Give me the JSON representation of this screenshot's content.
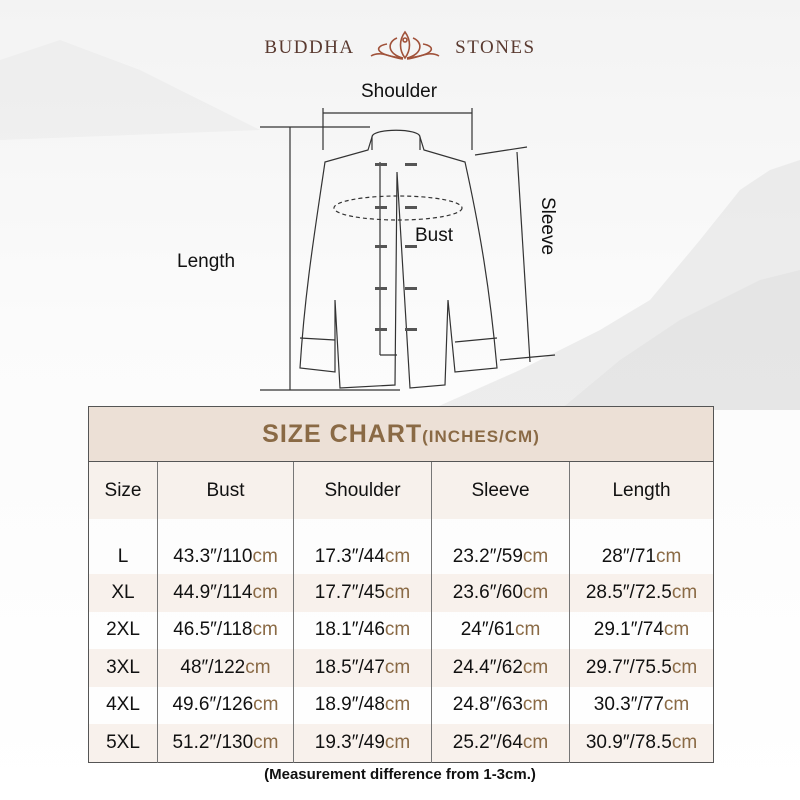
{
  "brand": {
    "left": "BUDDHA",
    "right": "STONES",
    "logo_icon": "lotus-meditation-icon",
    "color": "#a0523a"
  },
  "diagram": {
    "shoulder": "Shoulder",
    "bust": "Bust",
    "sleeve": "Sleeve",
    "length": "Length"
  },
  "table": {
    "title": "SIZE CHART",
    "title_unit": "(INCHES/CM)",
    "headers": [
      "Size",
      "Bust",
      "Shoulder",
      "Sleeve",
      "Length"
    ],
    "unit": "cm",
    "rows": [
      {
        "size": "L",
        "bust": "43.3″/110",
        "shoulder": "17.3″/44",
        "sleeve": "23.2″/59",
        "length": "28″/71"
      },
      {
        "size": "XL",
        "bust": "44.9″/114",
        "shoulder": "17.7″/45",
        "sleeve": "23.6″/60",
        "length": "28.5″/72.5"
      },
      {
        "size": "2XL",
        "bust": "46.5″/118",
        "shoulder": "18.1″/46",
        "sleeve": "24″/61",
        "length": "29.1″/74"
      },
      {
        "size": "3XL",
        "bust": "48″/122",
        "shoulder": "18.5″/47",
        "sleeve": "24.4″/62",
        "length": "29.7″/75.5"
      },
      {
        "size": "4XL",
        "bust": "49.6″/126",
        "shoulder": "18.9″/48",
        "sleeve": "24.8″/63",
        "length": "30.3″/77"
      },
      {
        "size": "5XL",
        "bust": "51.2″/130",
        "shoulder": "19.3″/49",
        "sleeve": "25.2″/64",
        "length": "30.9″/78.5"
      }
    ],
    "accent": "#8a6a45",
    "header_bg": "#ece0d6"
  },
  "note": "(Measurement difference from 1-3cm.)"
}
